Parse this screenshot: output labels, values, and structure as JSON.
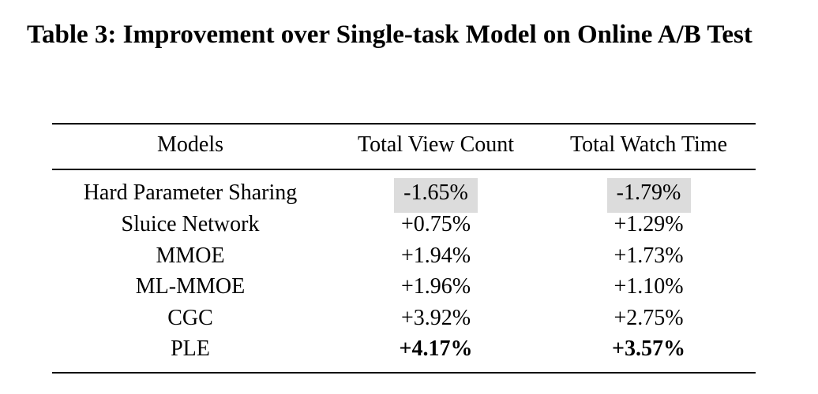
{
  "caption": "Table 3: Improvement over Single-task Model on Online A/B Test",
  "table": {
    "headers": [
      "Models",
      "Total View Count",
      "Total Watch Time"
    ],
    "rows": [
      {
        "model": "Hard Parameter Sharing",
        "view": "-1.65%",
        "watch": "-1.79%",
        "highlight": true
      },
      {
        "model": "Sluice Network",
        "view": "+0.75%",
        "watch": "+1.29%"
      },
      {
        "model": "MMOE",
        "view": "+1.94%",
        "watch": "+1.73%"
      },
      {
        "model": "ML-MMOE",
        "view": "+1.96%",
        "watch": "+1.10%"
      },
      {
        "model": "CGC",
        "view": "+3.92%",
        "watch": "+2.75%"
      },
      {
        "model": "PLE",
        "view": "+4.17%",
        "watch": "+3.57%",
        "bold": true
      }
    ],
    "highlight_color": "#dcdcdc"
  }
}
